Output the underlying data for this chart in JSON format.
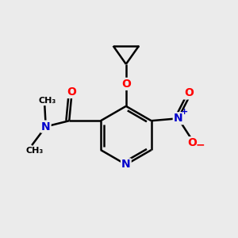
{
  "background_color": "#ebebeb",
  "bond_color": "#000000",
  "atom_colors": {
    "N": "#0000cc",
    "O": "#ff0000",
    "C": "#000000"
  },
  "figsize": [
    3.0,
    3.0
  ],
  "dpi": 100
}
